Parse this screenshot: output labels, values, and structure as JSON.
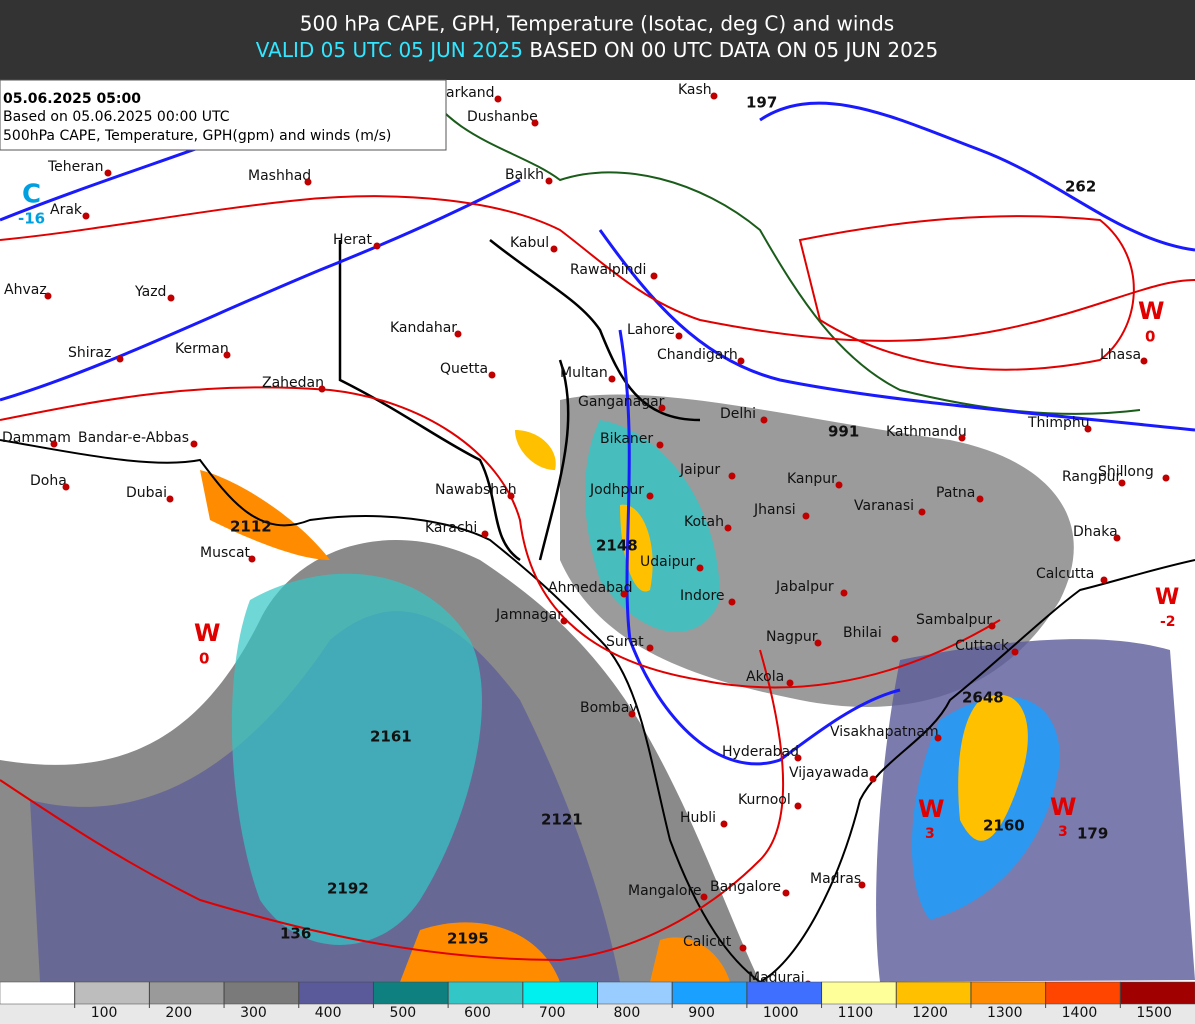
{
  "header": {
    "title": "500 hPa CAPE, GPH, Temperature (Isotac, deg C) and winds",
    "valid": "VALID 05 UTC 05 JUN 2025",
    "based": "BASED ON 00 UTC DATA ON 05 JUN 2025"
  },
  "info": {
    "date": "05.06.2025 05:00",
    "based_on": "Based on 05.06.2025 00:00 UTC",
    "fields": "500hPa CAPE, Temperature, GPH(gpm) and winds (m/s)"
  },
  "map": {
    "cities": [
      "Teheran",
      "Arak",
      "Mashhad",
      "Herat",
      "Yazd",
      "Ahvaz",
      "Shiraz",
      "Kerman",
      "Zahedan",
      "Kandahar",
      "Quetta",
      "Dammam",
      "Bandar-e-Abbas",
      "Doha",
      "Dubai",
      "Muscat",
      "Nawabshah",
      "Karachi",
      "Multan",
      "Ganganagar",
      "Bikaner",
      "Jodhpur",
      "Ahmedabad",
      "Jamnagar",
      "Surat",
      "Bombay",
      "Udaipur",
      "Kotah",
      "Jaipur",
      "Delhi",
      "Lahore",
      "Chandigarh",
      "Rawalpindi",
      "Kabul",
      "Balkh",
      "Dushanbe",
      "arkand",
      "Kash",
      "Indore",
      "Jhansi",
      "Kanpur",
      "Varanasi",
      "Patna",
      "Kathmandu",
      "Thimphu",
      "Lhasa",
      "Rangpur",
      "Shillong",
      "Dhaka",
      "Calcutta",
      "Jabalpur",
      "Nagpur",
      "Bhilai",
      "Sambalpur",
      "Cuttack",
      "Akola",
      "Visakhapatnam",
      "Hyderabad",
      "Vijayawada",
      "Kurnool",
      "Hubli",
      "Madras",
      "Bangalore",
      "Mangalore",
      "Calicut",
      "Madurai"
    ],
    "gph_labels": [
      "197",
      "262",
      "991",
      "2148",
      "2112",
      "2161",
      "2121",
      "2192",
      "136",
      "2195",
      "2648",
      "2160",
      "179"
    ],
    "centers": [
      "C",
      "-16",
      "W",
      "0",
      "W",
      "0",
      "W",
      "-2",
      "W",
      "3",
      "W",
      "3"
    ]
  },
  "legend": {
    "labels": [
      100,
      200,
      300,
      400,
      500,
      600,
      700,
      800,
      900,
      1000,
      1100,
      1200,
      1300,
      1400,
      1500
    ],
    "colors": [
      "#ffffff",
      "#bdbdbd",
      "#9a9a9a",
      "#7a7a7a",
      "#5a5a9a",
      "#0f8080",
      "#33c6c6",
      "#00f0f0",
      "#99ccff",
      "#1aa0ff",
      "#3f6fff",
      "#ffff99",
      "#ffc000",
      "#ff8c00",
      "#ff4500",
      "#a00000"
    ]
  }
}
